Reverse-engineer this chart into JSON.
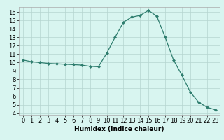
{
  "x": [
    0,
    1,
    2,
    3,
    4,
    5,
    6,
    7,
    8,
    9,
    10,
    11,
    12,
    13,
    14,
    15,
    16,
    17,
    18,
    19,
    20,
    21,
    22,
    23
  ],
  "y": [
    10.3,
    10.1,
    10.0,
    9.9,
    9.85,
    9.8,
    9.75,
    9.7,
    9.55,
    9.5,
    11.1,
    13.0,
    14.8,
    15.4,
    15.6,
    16.2,
    15.5,
    13.0,
    10.3,
    8.5,
    6.5,
    5.3,
    4.7,
    4.4
  ],
  "line_color": "#2e7d6e",
  "marker": "D",
  "marker_size": 2,
  "bg_color": "#d8f5f0",
  "grid_color": "#b5d5d0",
  "xlabel": "Humidex (Indice chaleur)",
  "ylabel": "",
  "xlim": [
    -0.5,
    23.5
  ],
  "ylim": [
    3.8,
    16.6
  ],
  "yticks": [
    4,
    5,
    6,
    7,
    8,
    9,
    10,
    11,
    12,
    13,
    14,
    15,
    16
  ],
  "xticks": [
    0,
    1,
    2,
    3,
    4,
    5,
    6,
    7,
    8,
    9,
    10,
    11,
    12,
    13,
    14,
    15,
    16,
    17,
    18,
    19,
    20,
    21,
    22,
    23
  ],
  "xlabel_fontsize": 6.5,
  "tick_fontsize": 6.0
}
